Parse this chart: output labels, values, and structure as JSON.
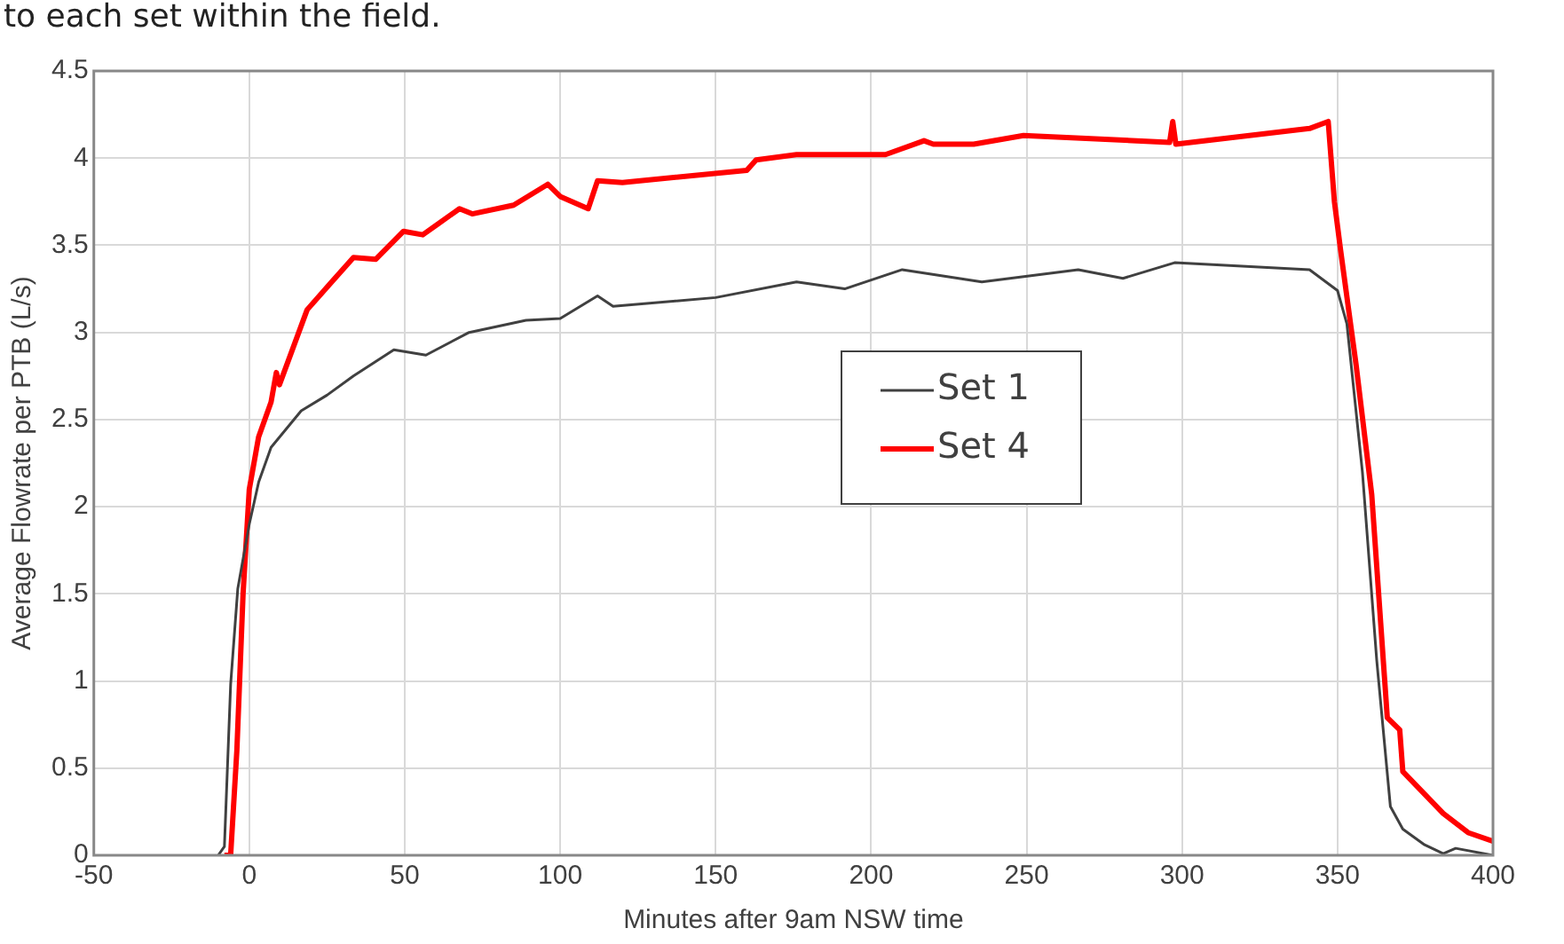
{
  "chart_data": {
    "type": "line",
    "xlabel": "Minutes after 9am NSW time",
    "ylabel": "Average Flowrate per PTB (L/s)",
    "annotations": [
      "to each set within the field."
    ],
    "xlim": [
      -50,
      400
    ],
    "xticks": [
      -50,
      0,
      50,
      100,
      150,
      200,
      250,
      300,
      350,
      400
    ],
    "ylim": [
      0,
      4.5
    ],
    "yticks": [
      0,
      0.5,
      1,
      1.5,
      2,
      2.5,
      3,
      3.5,
      4,
      4.5
    ],
    "grid": true,
    "legend": "center",
    "marker": "none",
    "line_style": "solid",
    "series": [
      {
        "name": "Set 1",
        "color": "#404040",
        "x": [
          -10,
          -8,
          -6,
          -3.7,
          0,
          3,
          7,
          16.7,
          25,
          33.5,
          46.5,
          56.8,
          70.7,
          89,
          100,
          112,
          117,
          150,
          176,
          191.5,
          210,
          235.6,
          266.6,
          281,
          297.6,
          341,
          350,
          353,
          358,
          362.6,
          367,
          371,
          378,
          384,
          388,
          400
        ],
        "values": [
          0,
          0.05,
          0.98,
          1.53,
          1.9,
          2.14,
          2.34,
          2.55,
          2.64,
          2.75,
          2.9,
          2.87,
          3.0,
          3.07,
          3.08,
          3.21,
          3.15,
          3.2,
          3.29,
          3.25,
          3.36,
          3.29,
          3.36,
          3.31,
          3.4,
          3.36,
          3.24,
          3.05,
          2.2,
          1.12,
          0.28,
          0.15,
          0.06,
          0.01,
          0.04,
          0.0
        ]
      },
      {
        "name": "Set 4",
        "color": "#ff0000",
        "x": [
          -8,
          -6,
          -4,
          -2,
          0,
          3,
          7,
          8.7,
          9.7,
          18.6,
          26,
          33.5,
          40.7,
          49.6,
          55.8,
          67.6,
          71.7,
          85,
          96,
          100,
          109,
          112,
          120,
          160,
          163,
          176,
          204.6,
          217,
          220,
          233,
          249,
          296,
          297,
          298,
          341,
          347,
          349,
          351,
          356,
          361,
          366,
          370,
          371,
          384,
          392,
          400
        ],
        "values": [
          0,
          0,
          0.6,
          1.5,
          2.1,
          2.4,
          2.6,
          2.77,
          2.7,
          3.13,
          3.28,
          3.43,
          3.42,
          3.58,
          3.56,
          3.71,
          3.68,
          3.73,
          3.85,
          3.78,
          3.71,
          3.87,
          3.86,
          3.93,
          3.99,
          4.02,
          4.02,
          4.1,
          4.08,
          4.08,
          4.13,
          4.09,
          4.21,
          4.08,
          4.17,
          4.21,
          3.75,
          3.47,
          2.81,
          2.07,
          0.79,
          0.72,
          0.48,
          0.24,
          0.13,
          0.08
        ]
      }
    ]
  }
}
